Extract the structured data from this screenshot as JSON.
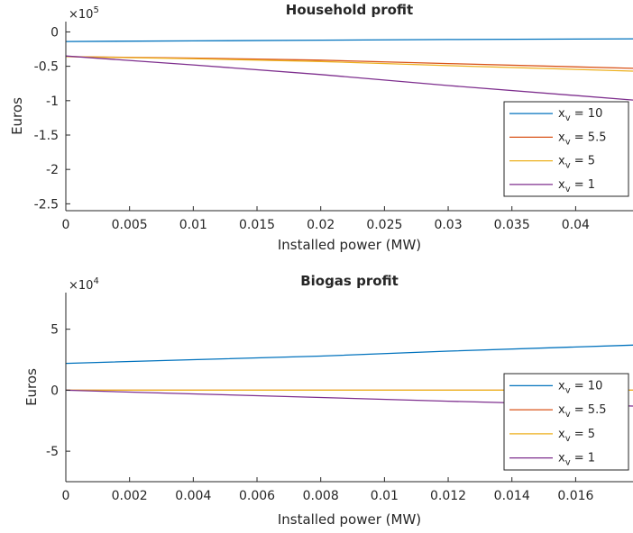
{
  "chart_data": [
    {
      "type": "line",
      "title": "Household profit",
      "xlabel": "Installed power (MW)",
      "ylabel": "Euros",
      "y_multiplier": {
        "base": "×10",
        "exp": "5"
      },
      "xlim": [
        0,
        0.0445
      ],
      "ylim": [
        -2.6,
        0.15
      ],
      "xticks": [
        0,
        0.005,
        0.01,
        0.015,
        0.02,
        0.025,
        0.03,
        0.035,
        0.04
      ],
      "xtick_labels": [
        "0",
        "0.005",
        "0.01",
        "0.015",
        "0.02",
        "0.025",
        "0.03",
        "0.035",
        "0.04"
      ],
      "yticks": [
        0,
        -0.5,
        -1,
        -1.5,
        -2,
        -2.5
      ],
      "ytick_labels": [
        "0",
        "-0.5",
        "-1",
        "-1.5",
        "-2",
        "-2.5"
      ],
      "legend_location": "right",
      "series": [
        {
          "name": "10",
          "color": "#0072BD",
          "x": [
            0,
            0.01,
            0.02,
            0.03,
            0.0445
          ],
          "y": [
            -0.14,
            -0.13,
            -0.12,
            -0.11,
            -0.1
          ]
        },
        {
          "name": "5.5",
          "color": "#D95319",
          "x": [
            0,
            0.01,
            0.02,
            0.03,
            0.0445
          ],
          "y": [
            -0.36,
            -0.38,
            -0.41,
            -0.46,
            -0.53
          ]
        },
        {
          "name": "5",
          "color": "#EDB120",
          "x": [
            0,
            0.01,
            0.02,
            0.03,
            0.0445
          ],
          "y": [
            -0.36,
            -0.39,
            -0.43,
            -0.49,
            -0.57
          ]
        },
        {
          "name": "1",
          "color": "#7E2F8E",
          "x": [
            0,
            0.01,
            0.02,
            0.03,
            0.0445
          ],
          "y": [
            -0.35,
            -0.48,
            -0.62,
            -0.78,
            -0.99
          ]
        }
      ]
    },
    {
      "type": "line",
      "title": "Biogas profit",
      "xlabel": "Installed power (MW)",
      "ylabel": "Euros",
      "y_multiplier": {
        "base": "×10",
        "exp": "4"
      },
      "xlim": [
        0,
        0.0178
      ],
      "ylim": [
        -7.5,
        8
      ],
      "xticks": [
        0,
        0.002,
        0.004,
        0.006,
        0.008,
        0.01,
        0.012,
        0.014,
        0.016
      ],
      "xtick_labels": [
        "0",
        "0.002",
        "0.004",
        "0.006",
        "0.008",
        "0.01",
        "0.012",
        "0.014",
        "0.016"
      ],
      "yticks": [
        5,
        0,
        -5
      ],
      "ytick_labels": [
        "5",
        "0",
        "-5"
      ],
      "legend_location": "right",
      "series": [
        {
          "name": "10",
          "color": "#0072BD",
          "x": [
            0,
            0.004,
            0.008,
            0.012,
            0.0178
          ],
          "y": [
            2.2,
            2.5,
            2.8,
            3.2,
            3.7
          ]
        },
        {
          "name": "5.5",
          "color": "#D95319",
          "x": [
            0,
            0.004,
            0.008,
            0.012,
            0.0178
          ],
          "y": [
            0,
            0,
            0,
            0,
            0
          ]
        },
        {
          "name": "5",
          "color": "#EDB120",
          "x": [
            0,
            0.004,
            0.008,
            0.012,
            0.0178
          ],
          "y": [
            0,
            0,
            0,
            0,
            0
          ]
        },
        {
          "name": "1",
          "color": "#7E2F8E",
          "x": [
            0,
            0.004,
            0.008,
            0.012,
            0.0178
          ],
          "y": [
            0,
            -0.3,
            -0.6,
            -0.9,
            -1.3
          ]
        }
      ]
    }
  ],
  "legend_label": {
    "var": "x",
    "sub": "v",
    "eq": " = "
  }
}
